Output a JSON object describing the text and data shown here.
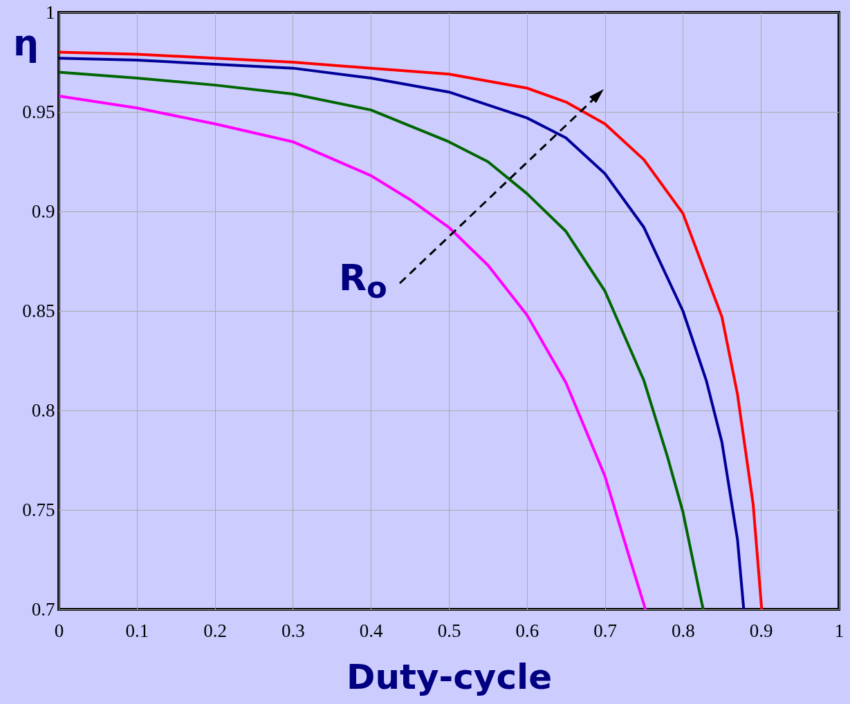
{
  "chart_data": {
    "type": "line",
    "xlabel": "Duty-cycle",
    "ylabel": "η",
    "annotations": [
      "R$_{o}$"
    ],
    "xlim": [
      0,
      1
    ],
    "ylim": [
      0.7,
      1
    ],
    "xticks": [
      0,
      0.1,
      0.2,
      0.3,
      0.4,
      0.5,
      0.6,
      0.7,
      0.8,
      0.9,
      1
    ],
    "yticks": [
      0.7,
      0.75,
      0.8,
      0.85,
      0.9,
      0.95,
      1
    ],
    "grid": true,
    "line_style": "solid",
    "marker": "none",
    "series": [
      {
        "color": "#ff0000",
        "x": [
          0,
          0.1,
          0.2,
          0.3,
          0.4,
          0.5,
          0.6,
          0.65,
          0.7,
          0.75,
          0.8,
          0.85,
          0.87,
          0.89,
          0.901
        ],
        "values": [
          0.98,
          0.979,
          0.977,
          0.975,
          0.972,
          0.969,
          0.962,
          0.955,
          0.944,
          0.926,
          0.899,
          0.847,
          0.808,
          0.753,
          0.7
        ]
      },
      {
        "color": "#000099",
        "x": [
          0,
          0.1,
          0.2,
          0.3,
          0.4,
          0.5,
          0.6,
          0.65,
          0.7,
          0.75,
          0.8,
          0.83,
          0.85,
          0.87,
          0.878
        ],
        "values": [
          0.977,
          0.976,
          0.974,
          0.972,
          0.967,
          0.96,
          0.947,
          0.937,
          0.919,
          0.892,
          0.85,
          0.815,
          0.784,
          0.735,
          0.7
        ]
      },
      {
        "color": "#006600",
        "x": [
          0,
          0.1,
          0.2,
          0.3,
          0.4,
          0.5,
          0.55,
          0.6,
          0.65,
          0.7,
          0.75,
          0.78,
          0.8,
          0.82,
          0.826
        ],
        "values": [
          0.97,
          0.967,
          0.9635,
          0.959,
          0.951,
          0.935,
          0.925,
          0.909,
          0.89,
          0.86,
          0.815,
          0.777,
          0.749,
          0.711,
          0.7
        ]
      },
      {
        "color": "#ff00ff",
        "x": [
          0,
          0.1,
          0.2,
          0.3,
          0.4,
          0.45,
          0.5,
          0.55,
          0.6,
          0.65,
          0.7,
          0.73,
          0.752
        ],
        "values": [
          0.958,
          0.952,
          0.944,
          0.935,
          0.918,
          0.906,
          0.892,
          0.873,
          0.848,
          0.814,
          0.767,
          0.728,
          0.7
        ]
      }
    ]
  }
}
